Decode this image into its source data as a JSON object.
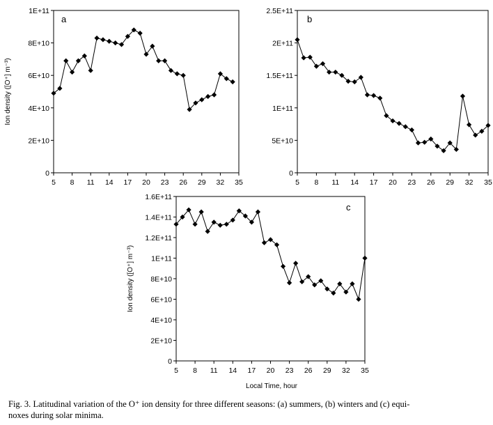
{
  "figure": {
    "x_axis_title": "Local Time, hour",
    "caption_prefix": "Fig. 3.",
    "caption_lines": [
      "Latitudinal variation of the O⁺ ion density for three different seasons: (a) summers, (b) winters and (c) equi-",
      "noxes during solar minima."
    ]
  },
  "chart_data": [
    {
      "panel": "a",
      "type": "line",
      "title": "",
      "xlabel": "",
      "ylabel": "Ion density ([O⁺] m⁻³)",
      "xlim": [
        5,
        35
      ],
      "ylim": [
        0,
        100000000000.0
      ],
      "x_ticks": [
        5,
        8,
        11,
        14,
        17,
        20,
        23,
        26,
        29,
        32,
        35
      ],
      "x_tick_labels": [
        "5",
        "8",
        "11",
        "14",
        "17",
        "20",
        "23",
        "26",
        "29",
        "32",
        "35"
      ],
      "y_ticks": [
        0,
        20000000000.0,
        40000000000.0,
        60000000000.0,
        80000000000.0,
        100000000000.0
      ],
      "y_tick_labels": [
        "0",
        "2E+10",
        "4E+10",
        "6E+10",
        "8E+10",
        "1E+11"
      ],
      "series": [
        {
          "name": "summers",
          "x": [
            5,
            6,
            7,
            8,
            9,
            10,
            11,
            12,
            13,
            14,
            15,
            16,
            17,
            18,
            19,
            20,
            21,
            22,
            23,
            24,
            25,
            26,
            27,
            28,
            29,
            30,
            31,
            32,
            33,
            34
          ],
          "values": [
            49000000000.0,
            52000000000.0,
            69000000000.0,
            62000000000.0,
            69000000000.0,
            72000000000.0,
            63000000000.0,
            83000000000.0,
            82000000000.0,
            81000000000.0,
            80000000000.0,
            79000000000.0,
            84000000000.0,
            88000000000.0,
            86000000000.0,
            73000000000.0,
            78000000000.0,
            69000000000.0,
            69000000000.0,
            63000000000.0,
            61000000000.0,
            60000000000.0,
            39000000000.0,
            43000000000.0,
            45000000000.0,
            47000000000.0,
            48000000000.0,
            61000000000.0,
            58000000000.0,
            56000000000.0
          ]
        }
      ]
    },
    {
      "panel": "b",
      "type": "line",
      "title": "",
      "xlabel": "",
      "ylabel": "",
      "xlim": [
        5,
        35
      ],
      "ylim": [
        0,
        250000000000.0
      ],
      "x_ticks": [
        5,
        8,
        11,
        14,
        17,
        20,
        23,
        26,
        29,
        32,
        35
      ],
      "x_tick_labels": [
        "5",
        "8",
        "11",
        "14",
        "17",
        "20",
        "23",
        "26",
        "29",
        "32",
        "35"
      ],
      "y_ticks": [
        0,
        50000000000.0,
        100000000000.0,
        150000000000.0,
        200000000000.0,
        250000000000.0
      ],
      "y_tick_labels": [
        "0",
        "5E+10",
        "1E+11",
        "1.5E+11",
        "2E+11",
        "2.5E+11"
      ],
      "series": [
        {
          "name": "winters",
          "x": [
            5,
            6,
            7,
            8,
            9,
            10,
            11,
            12,
            13,
            14,
            15,
            16,
            17,
            18,
            19,
            20,
            21,
            22,
            23,
            24,
            25,
            26,
            27,
            28,
            29,
            30,
            31,
            32,
            33,
            34,
            35
          ],
          "values": [
            205000000000.0,
            177000000000.0,
            178000000000.0,
            164000000000.0,
            168000000000.0,
            155000000000.0,
            155000000000.0,
            150000000000.0,
            141000000000.0,
            140000000000.0,
            147000000000.0,
            120000000000.0,
            119000000000.0,
            115000000000.0,
            88000000000.0,
            80000000000.0,
            76000000000.0,
            71000000000.0,
            66000000000.0,
            46000000000.0,
            47000000000.0,
            52000000000.0,
            41000000000.0,
            34000000000.0,
            46000000000.0,
            36000000000.0,
            118000000000.0,
            74000000000.0,
            58000000000.0,
            64000000000.0,
            73000000000.0
          ]
        }
      ]
    },
    {
      "panel": "c",
      "type": "line",
      "title": "",
      "xlabel": "Local Time, hour",
      "ylabel": "Ion density ([O⁺] m⁻³)",
      "xlim": [
        5,
        35
      ],
      "ylim": [
        0,
        160000000000.0
      ],
      "x_ticks": [
        5,
        8,
        11,
        14,
        17,
        20,
        23,
        26,
        29,
        32,
        35
      ],
      "x_tick_labels": [
        "5",
        "8",
        "11",
        "14",
        "17",
        "20",
        "23",
        "26",
        "29",
        "32",
        "35"
      ],
      "y_ticks": [
        0,
        20000000000.0,
        40000000000.0,
        60000000000.0,
        80000000000.0,
        100000000000.0,
        120000000000.0,
        140000000000.0,
        160000000000.0
      ],
      "y_tick_labels": [
        "0",
        "2E+10",
        "4E+10",
        "6E+10",
        "8E+10",
        "1E+11",
        "1.2E+11",
        "1.4E+11",
        "1.6E+11"
      ],
      "series": [
        {
          "name": "equinoxes",
          "x": [
            5,
            6,
            7,
            8,
            9,
            10,
            11,
            12,
            13,
            14,
            15,
            16,
            17,
            18,
            19,
            20,
            21,
            22,
            23,
            24,
            25,
            26,
            27,
            28,
            29,
            30,
            31,
            32,
            33,
            34,
            35
          ],
          "values": [
            133000000000.0,
            140000000000.0,
            147000000000.0,
            133000000000.0,
            145000000000.0,
            126000000000.0,
            135000000000.0,
            132000000000.0,
            133000000000.0,
            137000000000.0,
            146000000000.0,
            141000000000.0,
            135000000000.0,
            145000000000.0,
            115000000000.0,
            118000000000.0,
            113000000000.0,
            92000000000.0,
            76000000000.0,
            95000000000.0,
            77000000000.0,
            82000000000.0,
            74000000000.0,
            78000000000.0,
            70000000000.0,
            66000000000.0,
            75000000000.0,
            67000000000.0,
            75000000000.0,
            60000000000.0,
            100000000000.0
          ]
        }
      ]
    }
  ]
}
